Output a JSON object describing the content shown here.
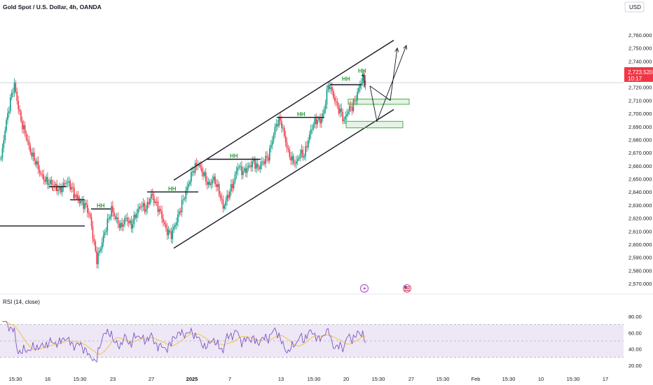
{
  "symbol": "Gold Spot / U.S. Dollar, 4h, OANDA",
  "currency": "USD",
  "price_box": {
    "price": "2,723.520",
    "countdown": "10:17",
    "value": 2723.52
  },
  "colors": {
    "up": "#089981",
    "down": "#f23645",
    "hh": "#2e9e3e",
    "ll": "#d32f2f",
    "zone": "#4caf50",
    "rsi": "#7e57c2",
    "rsi_ma": "#f5c542",
    "rsi_fill": "#ede7f6"
  },
  "chart_data": [
    {
      "type": "candlestick",
      "y_axis": {
        "min": 2565,
        "max": 2765,
        "ticks": [
          "2,570.000",
          "2,580.000",
          "2,590.000",
          "2,600.000",
          "2,610.000",
          "2,620.000",
          "2,630.000",
          "2,640.000",
          "2,650.000",
          "2,660.000",
          "2,670.000",
          "2,680.000",
          "2,690.000",
          "2,700.000",
          "2,710.000",
          "2,720.000",
          "2,730.000",
          "2,740.000",
          "2,750.000",
          "2,760.000"
        ]
      },
      "x_axis": {
        "labels": [
          "15:30",
          "16",
          "15:30",
          "23",
          "27",
          "2025",
          "7",
          "13",
          "15:30",
          "20",
          "15:30",
          "27",
          "15:30",
          "Feb",
          "15:30",
          "10",
          "15:30",
          "17"
        ]
      },
      "structure_labels": [
        {
          "text": "LL",
          "price": 2641
        },
        {
          "text": "LL",
          "price": 2635
        },
        {
          "text": "HH",
          "price": 2628
        },
        {
          "text": "HH",
          "price": 2641
        },
        {
          "text": "HH",
          "price": 2666
        },
        {
          "text": "HH",
          "price": 2698
        },
        {
          "text": "HH",
          "price": 2725
        },
        {
          "text": "HH",
          "price": 2731
        }
      ],
      "channel": {
        "upper": [
          [
            2649,
            2756
          ]
        ],
        "lower": [
          [
            2597,
            2703
          ]
        ]
      },
      "demand_zones": [
        {
          "top": 2711,
          "bottom": 2707
        },
        {
          "top": 2694,
          "bottom": 2689
        }
      ],
      "current_price": 2723.52
    },
    {
      "type": "line",
      "title": "RSI (14, close)",
      "ylim": [
        20,
        80
      ],
      "ticks": [
        "80.00",
        "60.00",
        "40.00",
        "20.00"
      ],
      "band": [
        30,
        70
      ]
    }
  ]
}
